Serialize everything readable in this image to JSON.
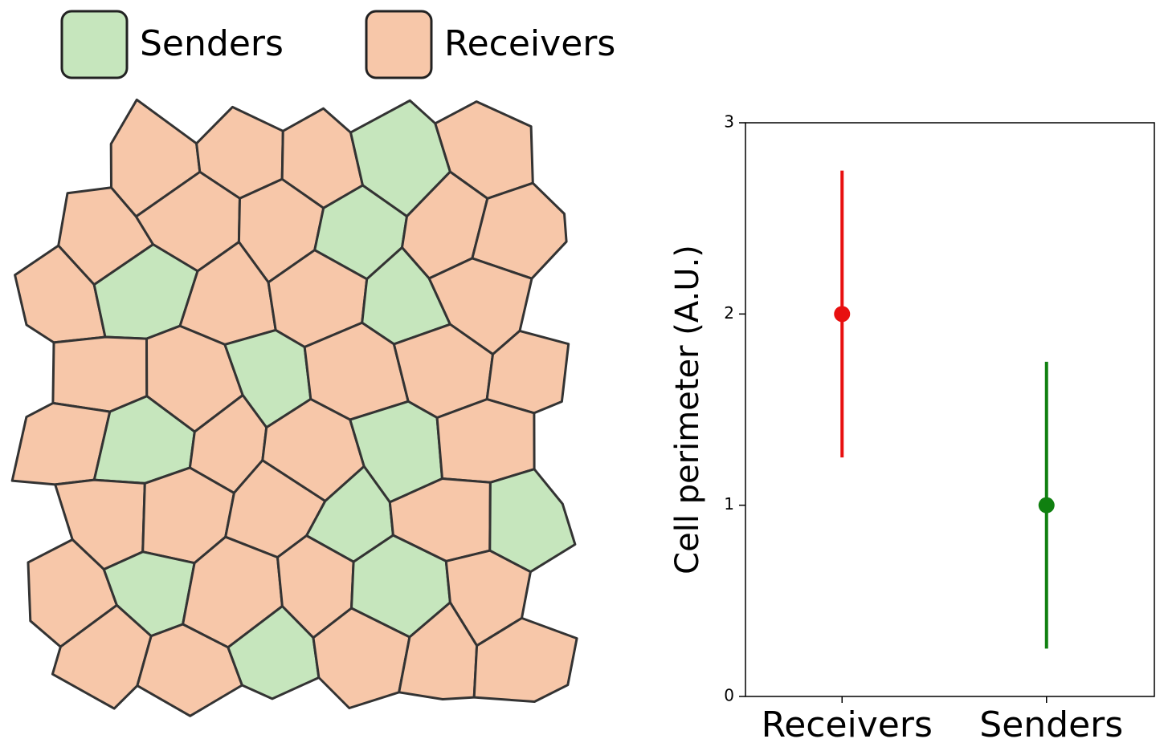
{
  "legend": [
    {
      "label": "Senders",
      "color": "#c6e6bd"
    },
    {
      "label": "Receivers",
      "color": "#f7c7a9"
    }
  ],
  "chart_data": {
    "type": "errorbar",
    "categories": [
      "Receivers",
      "Senders"
    ],
    "values": [
      2,
      1
    ],
    "errors": [
      0.75,
      0.75
    ],
    "colors": [
      "#e81010",
      "#108010"
    ],
    "ylabel": "Cell perimeter (A.U.)",
    "ylim": [
      0,
      3
    ],
    "yticks": [
      0,
      1,
      2,
      3
    ]
  }
}
